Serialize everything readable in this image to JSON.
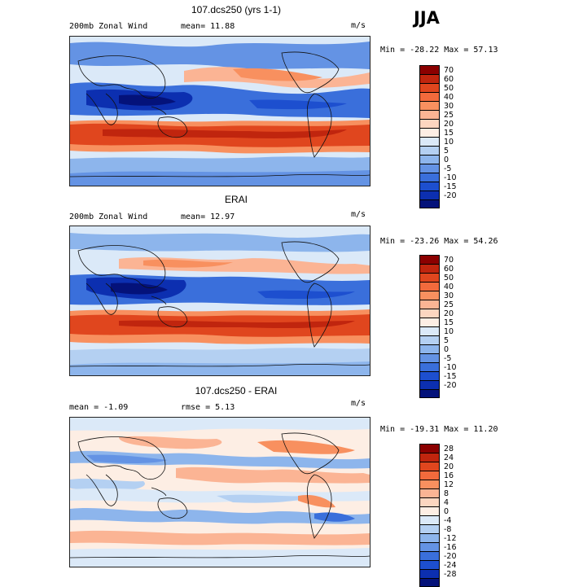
{
  "season": "JJA",
  "panels": [
    {
      "title": "107.dcs250 (yrs 1-1)",
      "left_label": "200mb Zonal Wind",
      "mean_label": "mean=  11.88",
      "units": "m/s",
      "minmax": "Min = -28.22 Max =  57.13",
      "colorbar_labels": [
        "70",
        "60",
        "50",
        "40",
        "30",
        "25",
        "20",
        "15",
        "10",
        "5",
        "0",
        "-5",
        "-10",
        "-15",
        "-20"
      ],
      "colors": [
        "#8b0000",
        "#c0250e",
        "#e0461e",
        "#f26a3c",
        "#f8905f",
        "#fbb494",
        "#fcd6c0",
        "#fdeee4",
        "#dbe9f8",
        "#b4d0f2",
        "#8db5ec",
        "#6493e4",
        "#3a6fdb",
        "#1d4fcf",
        "#0c2fb0",
        "#04127a"
      ]
    },
    {
      "title": "ERAI",
      "left_label": "200mb Zonal Wind",
      "mean_label": "mean=  12.97",
      "units": "m/s",
      "minmax": "Min = -23.26 Max =  54.26",
      "colorbar_labels": [
        "70",
        "60",
        "50",
        "40",
        "30",
        "25",
        "20",
        "15",
        "10",
        "5",
        "0",
        "-5",
        "-10",
        "-15",
        "-20"
      ],
      "colors": [
        "#8b0000",
        "#c0250e",
        "#e0461e",
        "#f26a3c",
        "#f8905f",
        "#fbb494",
        "#fcd6c0",
        "#fdeee4",
        "#dbe9f8",
        "#b4d0f2",
        "#8db5ec",
        "#6493e4",
        "#3a6fdb",
        "#1d4fcf",
        "#0c2fb0",
        "#04127a"
      ]
    },
    {
      "title": "107.dcs250 - ERAI",
      "left_label": "mean =  -1.09",
      "mean_label": "rmse =   5.13",
      "units": "m/s",
      "minmax": "Min = -19.31 Max =  11.20",
      "colorbar_labels": [
        "28",
        "24",
        "20",
        "16",
        "12",
        "8",
        "4",
        "0",
        "-4",
        "-8",
        "-12",
        "-16",
        "-20",
        "-24",
        "-28"
      ],
      "colors": [
        "#8b0000",
        "#c0250e",
        "#e0461e",
        "#f26a3c",
        "#f8905f",
        "#fbb494",
        "#fcd6c0",
        "#fdeee4",
        "#dbe9f8",
        "#b4d0f2",
        "#8db5ec",
        "#6493e4",
        "#3a6fdb",
        "#1d4fcf",
        "#0c2fb0",
        "#04127a"
      ]
    }
  ]
}
